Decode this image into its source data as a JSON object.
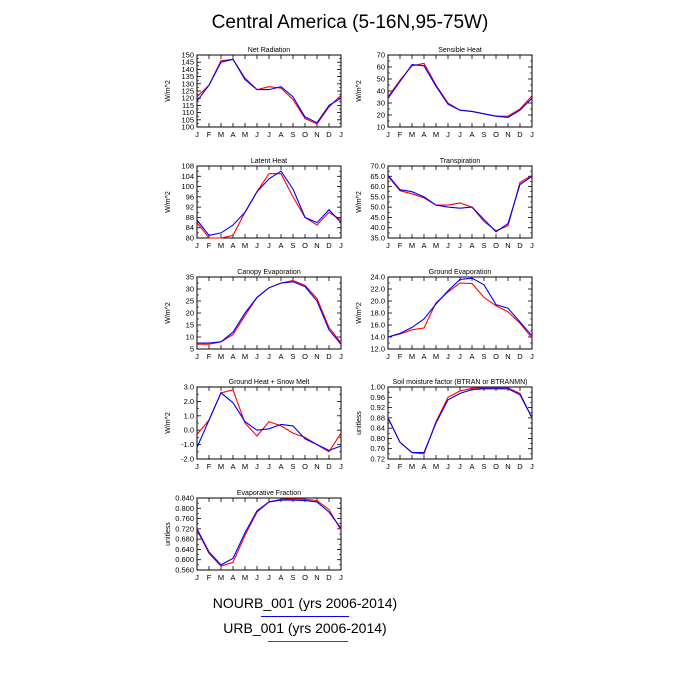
{
  "title": "Central America (5-16N,95-75W)",
  "legend": [
    {
      "label": "NOURB_001 (yrs 2006-2014)",
      "color": "#0000ff"
    },
    {
      "label": "URB_001 (yrs 2006-2014)",
      "color": "#ff0000"
    }
  ],
  "chart_data": [
    {
      "type": "line",
      "title": "Net Radiation",
      "ylabel": "W/m^2",
      "ylim": [
        100,
        150
      ],
      "yticks": [
        "100",
        "105",
        "110",
        "115",
        "120",
        "125",
        "130",
        "135",
        "140",
        "145",
        "150"
      ],
      "x": [
        "J",
        "F",
        "M",
        "A",
        "M",
        "J",
        "J",
        "A",
        "S",
        "O",
        "N",
        "D",
        "J"
      ],
      "series": [
        {
          "name": "NOURB_001 (yrs 2006-2014)",
          "color": "#0000ff",
          "values": [
            118,
            129,
            145,
            147,
            133,
            126,
            126,
            128,
            121,
            107,
            103,
            115,
            120
          ]
        },
        {
          "name": "URB_001 (yrs 2006-2014)",
          "color": "#ff0000",
          "values": [
            121,
            129,
            146,
            147,
            134,
            126,
            128,
            127,
            119,
            106,
            102,
            114,
            122
          ]
        }
      ]
    },
    {
      "type": "line",
      "title": "Sensible Heat",
      "ylabel": "W/m^2",
      "ylim": [
        10,
        70
      ],
      "yticks": [
        "10",
        "20",
        "30",
        "40",
        "50",
        "60",
        "70"
      ],
      "x": [
        "J",
        "F",
        "M",
        "A",
        "M",
        "J",
        "J",
        "A",
        "S",
        "O",
        "N",
        "D",
        "J"
      ],
      "series": [
        {
          "name": "NOURB_001 (yrs 2006-2014)",
          "color": "#0000ff",
          "values": [
            34,
            48,
            62,
            61,
            44,
            29,
            24,
            23,
            21,
            19,
            18,
            24,
            34
          ]
        },
        {
          "name": "URB_001 (yrs 2006-2014)",
          "color": "#ff0000",
          "values": [
            35,
            49,
            61,
            63,
            45,
            30,
            24,
            23,
            21,
            19,
            19,
            25,
            36
          ]
        }
      ]
    },
    {
      "type": "line",
      "title": "Latent Heat",
      "ylabel": "W/m^2",
      "ylim": [
        80,
        108
      ],
      "yticks": [
        "80",
        "84",
        "88",
        "92",
        "96",
        "100",
        "104",
        "108"
      ],
      "x": [
        "J",
        "F",
        "M",
        "A",
        "M",
        "J",
        "J",
        "A",
        "S",
        "O",
        "N",
        "D",
        "J"
      ],
      "series": [
        {
          "name": "NOURB_001 (yrs 2006-2014)",
          "color": "#0000ff",
          "values": [
            87,
            81,
            82,
            85,
            90,
            98,
            103,
            106,
            99,
            88,
            86,
            91,
            86
          ]
        },
        {
          "name": "URB_001 (yrs 2006-2014)",
          "color": "#ff0000",
          "values": [
            86,
            80,
            80,
            81,
            90,
            98,
            105,
            105,
            96,
            88,
            85,
            90,
            87
          ]
        }
      ]
    },
    {
      "type": "line",
      "title": "Transpiration",
      "ylabel": "W/m^2",
      "ylim": [
        35,
        70
      ],
      "yticks": [
        "35.0",
        "40.0",
        "45.0",
        "50.0",
        "55.0",
        "60.0",
        "65.0",
        "70.0"
      ],
      "x": [
        "J",
        "F",
        "M",
        "A",
        "M",
        "J",
        "J",
        "A",
        "S",
        "O",
        "N",
        "D",
        "J"
      ],
      "series": [
        {
          "name": "NOURB_001 (yrs 2006-2014)",
          "color": "#0000ff",
          "values": [
            65.5,
            58.5,
            57.5,
            55,
            51,
            50,
            49.5,
            50,
            44,
            38,
            42,
            61,
            65
          ]
        },
        {
          "name": "URB_001 (yrs 2006-2014)",
          "color": "#ff0000",
          "values": [
            65,
            58,
            56.5,
            54.5,
            51,
            51,
            52,
            50,
            43,
            38.5,
            41,
            62,
            65.5
          ]
        }
      ]
    },
    {
      "type": "line",
      "title": "Canopy Evaporation",
      "ylabel": "W/m^2",
      "ylim": [
        5,
        35
      ],
      "yticks": [
        "5",
        "10",
        "15",
        "20",
        "25",
        "30",
        "35"
      ],
      "x": [
        "J",
        "F",
        "M",
        "A",
        "M",
        "J",
        "J",
        "A",
        "S",
        "O",
        "N",
        "D",
        "J"
      ],
      "series": [
        {
          "name": "NOURB_001 (yrs 2006-2014)",
          "color": "#0000ff",
          "values": [
            7.5,
            7.5,
            8,
            12,
            20,
            26.5,
            30.5,
            32.5,
            33,
            31,
            25,
            13,
            7
          ]
        },
        {
          "name": "URB_001 (yrs 2006-2014)",
          "color": "#ff0000",
          "values": [
            7,
            7,
            8,
            11,
            19,
            26.5,
            30.5,
            32.5,
            33.5,
            31.5,
            26,
            14,
            7.5
          ]
        }
      ]
    },
    {
      "type": "line",
      "title": "Ground Evaporation",
      "ylabel": "W/m^2",
      "ylim": [
        12,
        24
      ],
      "yticks": [
        "12.0",
        "14.0",
        "16.0",
        "18.0",
        "20.0",
        "22.0",
        "24.0"
      ],
      "x": [
        "J",
        "F",
        "M",
        "A",
        "M",
        "J",
        "J",
        "A",
        "S",
        "O",
        "N",
        "D",
        "J"
      ],
      "series": [
        {
          "name": "NOURB_001 (yrs 2006-2014)",
          "color": "#0000ff",
          "values": [
            14,
            14.6,
            15.6,
            17,
            19.5,
            21.7,
            23.6,
            23.8,
            22.7,
            19.4,
            18.8,
            16.5,
            14.2
          ]
        },
        {
          "name": "URB_001 (yrs 2006-2014)",
          "color": "#ff0000",
          "values": [
            14,
            14.5,
            15.2,
            15.5,
            19.7,
            21.5,
            23,
            22.9,
            20.6,
            19.2,
            18.2,
            16.3,
            13.8
          ]
        }
      ]
    },
    {
      "type": "line",
      "title": "Ground Heat + Snow Melt",
      "ylabel": "W/m^2",
      "ylim": [
        -2,
        3
      ],
      "yticks": [
        "-2.0",
        "-1.0",
        "0.0",
        "1.0",
        "2.0",
        "3.0"
      ],
      "x": [
        "J",
        "F",
        "M",
        "A",
        "M",
        "J",
        "J",
        "A",
        "S",
        "O",
        "N",
        "D",
        "J"
      ],
      "series": [
        {
          "name": "NOURB_001 (yrs 2006-2014)",
          "color": "#0000ff",
          "values": [
            -1.2,
            0.7,
            2.6,
            1.9,
            0.6,
            0,
            0.1,
            0.4,
            0.3,
            -0.6,
            -1,
            -1.4,
            -1.1
          ]
        },
        {
          "name": "URB_001 (yrs 2006-2014)",
          "color": "#ff0000",
          "values": [
            -0.3,
            0.7,
            2.6,
            2.8,
            0.5,
            -0.4,
            0.6,
            0.3,
            -0.2,
            -0.5,
            -1,
            -1.5,
            -0.2
          ]
        }
      ]
    },
    {
      "type": "line",
      "title": "Soil moisture factor (BTRAN or BTRANMN)",
      "ylabel": "unitless",
      "ylim": [
        0.72,
        1.0
      ],
      "yticks": [
        "0.72",
        "0.76",
        "0.80",
        "0.84",
        "0.88",
        "0.92",
        "0.96",
        "1.00"
      ],
      "x": [
        "J",
        "F",
        "M",
        "A",
        "M",
        "J",
        "J",
        "A",
        "S",
        "O",
        "N",
        "D",
        "J"
      ],
      "series": [
        {
          "name": "NOURB_001 (yrs 2006-2014)",
          "color": "#0000ff",
          "values": [
            0.88,
            0.785,
            0.745,
            0.745,
            0.86,
            0.95,
            0.975,
            0.99,
            0.993,
            0.993,
            0.993,
            0.97,
            0.88
          ]
        },
        {
          "name": "URB_001 (yrs 2006-2014)",
          "color": "#ff0000",
          "values": [
            0.88,
            0.785,
            0.745,
            0.74,
            0.865,
            0.96,
            0.985,
            0.995,
            0.997,
            0.997,
            0.997,
            0.975,
            0.88
          ]
        }
      ]
    },
    {
      "type": "line",
      "title": "Evaporative Fraction",
      "ylabel": "unitless",
      "ylim": [
        0.56,
        0.84
      ],
      "yticks": [
        "0.560",
        "0.600",
        "0.640",
        "0.680",
        "0.720",
        "0.760",
        "0.800",
        "0.840"
      ],
      "x": [
        "J",
        "F",
        "M",
        "A",
        "M",
        "J",
        "J",
        "A",
        "S",
        "O",
        "N",
        "D",
        "J"
      ],
      "series": [
        {
          "name": "NOURB_001 (yrs 2006-2014)",
          "color": "#0000ff",
          "values": [
            0.72,
            0.63,
            0.58,
            0.605,
            0.705,
            0.79,
            0.825,
            0.832,
            0.832,
            0.83,
            0.825,
            0.785,
            0.722
          ]
        },
        {
          "name": "URB_001 (yrs 2006-2014)",
          "color": "#ff0000",
          "values": [
            0.715,
            0.625,
            0.575,
            0.59,
            0.695,
            0.785,
            0.825,
            0.835,
            0.837,
            0.835,
            0.83,
            0.795,
            0.715
          ]
        }
      ]
    }
  ]
}
